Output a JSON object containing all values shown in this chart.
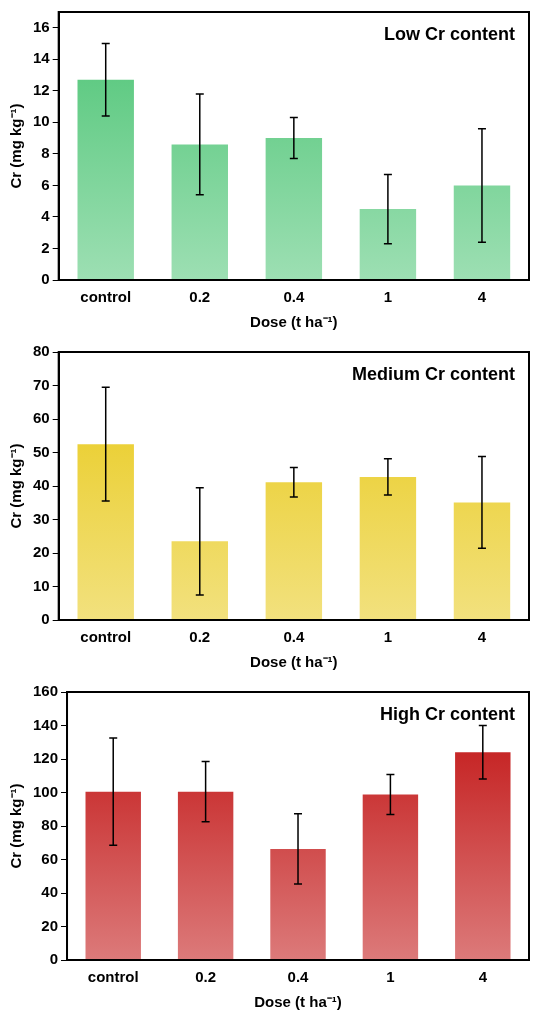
{
  "chart_data": [
    {
      "type": "bar",
      "title": "Low Cr content",
      "xlabel": "Dose (t ha⁻¹)",
      "ylabel": "Cr (mg kg⁻¹)",
      "categories": [
        "control",
        "0.2",
        "0.4",
        "1",
        "4"
      ],
      "series": [
        {
          "color": "#4cc474",
          "values": [
            12.7,
            8.6,
            9.0,
            4.5,
            6.0
          ],
          "errors": [
            2.3,
            3.2,
            1.3,
            2.2,
            3.6
          ]
        }
      ],
      "ylim": [
        0,
        17
      ],
      "yticks": [
        0,
        2,
        4,
        6,
        8,
        10,
        12,
        14,
        16
      ],
      "grid": false,
      "legend": false
    },
    {
      "type": "bar",
      "title": "Medium Cr content",
      "xlabel": "Dose (t ha⁻¹)",
      "ylabel": "Cr (mg kg⁻¹)",
      "categories": [
        "control",
        "0.2",
        "0.4",
        "1",
        "4"
      ],
      "series": [
        {
          "color": "#e8c814",
          "values": [
            52.5,
            23.5,
            41.1,
            42.7,
            35.1
          ],
          "errors": [
            17,
            16,
            4.4,
            5.4,
            13.7
          ]
        }
      ],
      "ylim": [
        0,
        80
      ],
      "yticks": [
        0,
        10,
        20,
        30,
        40,
        50,
        60,
        70,
        80
      ],
      "grid": false,
      "legend": false
    },
    {
      "type": "bar",
      "title": "High Cr content",
      "xlabel": "Dose (t ha⁻¹)",
      "ylabel": "Cr (mg kg⁻¹)",
      "categories": [
        "control",
        "0.2",
        "0.4",
        "1",
        "4"
      ],
      "series": [
        {
          "color": "#c00e0e",
          "values": [
            100.5,
            100.5,
            66.3,
            98.8,
            124
          ],
          "errors": [
            32,
            18,
            21,
            12,
            16
          ]
        }
      ],
      "ylim": [
        0,
        160
      ],
      "yticks": [
        0,
        20,
        40,
        60,
        80,
        100,
        120,
        140,
        160
      ],
      "grid": false,
      "legend": false
    }
  ]
}
